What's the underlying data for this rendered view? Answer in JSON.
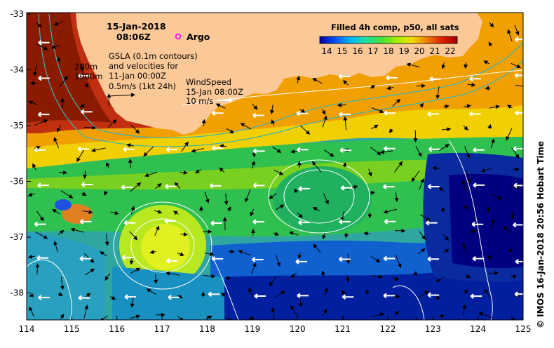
{
  "map": {
    "date": "15-Jan-2018",
    "time": "08:06Z",
    "argo_label": "Argo",
    "colors": {
      "land": "#FBC898",
      "deep_blue": "#000080",
      "frame": "#000000",
      "vector": "#000000",
      "wind": "#ffffff",
      "contour_bathy": "#3cb4b4",
      "contour_gsla": "#ffffff",
      "argo": "#ff00ff"
    },
    "gsla": {
      "line1": "GSLA (0.1m contours)",
      "line2": "and velocities for",
      "line3": "11-Jan 00:00Z",
      "scale": "0.5m/s (1kt 24h)"
    },
    "wind": {
      "line1": "WindSpeed",
      "line2": "15-Jan 08:00Z",
      "line3": "10 m/s"
    },
    "bathy": {
      "label_200": "200m",
      "label_1000": "1000m"
    },
    "colorbar": {
      "title": "Filled 4h comp, p50, all sats",
      "ticks": [
        "14",
        "15",
        "16",
        "17",
        "18",
        "19",
        "20",
        "21",
        "22"
      ],
      "stops": [
        "#0000a0",
        "#0050ff",
        "#00b4ff",
        "#20e0a0",
        "#40e040",
        "#a0f000",
        "#f0e000",
        "#f08000",
        "#e02000",
        "#a00000"
      ]
    },
    "credit": "© IMOS 16-Jan-2018 20:56 Hobart Time",
    "x_ticks": [
      "114",
      "115",
      "116",
      "117",
      "118",
      "119",
      "120",
      "121",
      "122",
      "123",
      "124",
      "125"
    ],
    "y_ticks": [
      "-33",
      "-34",
      "-35",
      "-36",
      "-37",
      "-38"
    ]
  }
}
